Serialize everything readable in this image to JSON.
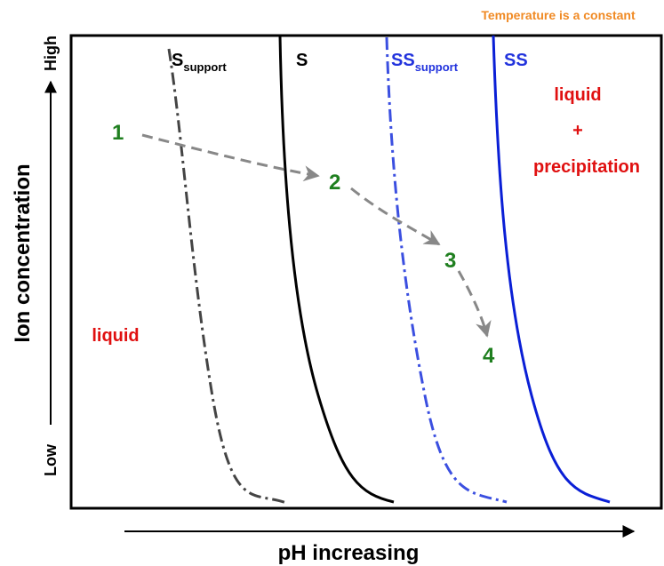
{
  "note_top": "Temperature is a constant",
  "y_axis": {
    "label": "Ion concentration",
    "high": "High",
    "low": "Low"
  },
  "x_axis": {
    "label": "pH increasing"
  },
  "curves": [
    {
      "main": "S",
      "sub": "support"
    },
    {
      "main": "S"
    },
    {
      "main": "SS",
      "sub": "support"
    },
    {
      "main": "SS"
    }
  ],
  "regions": {
    "left": "liquid",
    "right": [
      "liquid",
      "+",
      "precipitation"
    ]
  },
  "path_points": [
    "1",
    "2",
    "3",
    "4"
  ]
}
